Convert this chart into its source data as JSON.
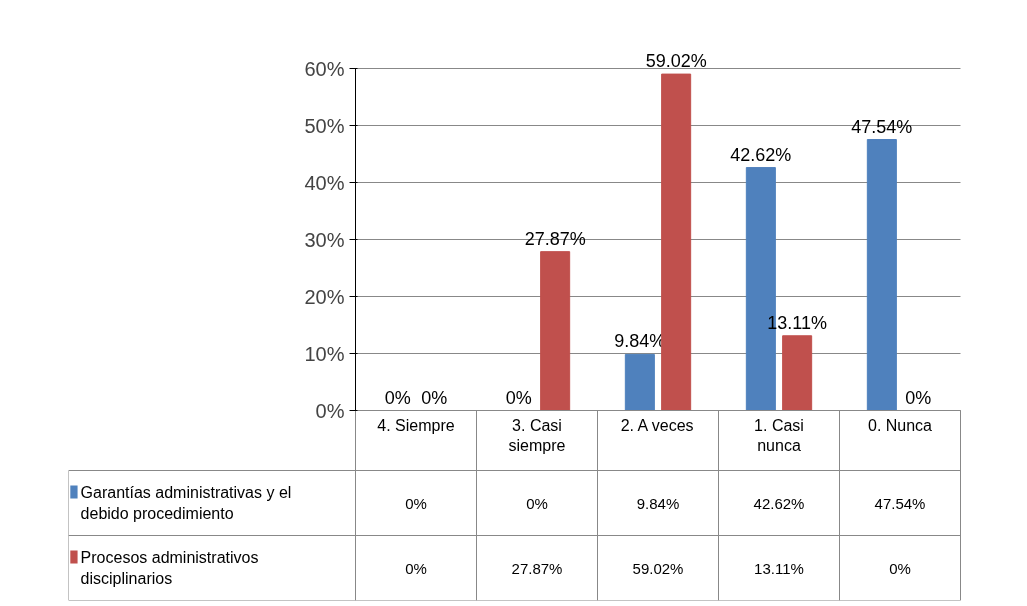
{
  "chart_data": {
    "type": "bar",
    "categories": [
      "4. Siempre",
      "3. Casi siempre",
      "2. A veces",
      "1. Casi nunca",
      "0. Nunca"
    ],
    "series": [
      {
        "name": "Garantías administrativas y el debido procedimiento",
        "color": "#4f81bd",
        "values": [
          0,
          0,
          9.84,
          42.62,
          47.54
        ],
        "value_labels": [
          "0%",
          "0%",
          "9.84%",
          "42.62%",
          "47.54%"
        ]
      },
      {
        "name": "Procesos administrativos disciplinarios",
        "color": "#c0504d",
        "values": [
          0,
          27.87,
          59.02,
          13.11,
          0
        ],
        "value_labels": [
          "0%",
          "27.87%",
          "59.02%",
          "13.11%",
          "0%"
        ]
      }
    ],
    "ylim": [
      0,
      60
    ],
    "yticks": [
      {
        "value": 0,
        "label": "0%"
      },
      {
        "value": 10,
        "label": "10%"
      },
      {
        "value": 20,
        "label": "20%"
      },
      {
        "value": 30,
        "label": "30%"
      },
      {
        "value": 40,
        "label": "40%"
      },
      {
        "value": 50,
        "label": "50%"
      },
      {
        "value": 60,
        "label": "60%"
      }
    ],
    "grid": "y",
    "legend": "bottom"
  }
}
